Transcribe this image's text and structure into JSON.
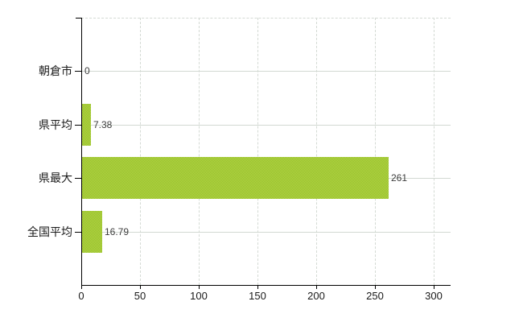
{
  "chart": {
    "background": "#ffffff",
    "axis_color": "#000000",
    "gridline_color": "#d4dad4",
    "bar_color": "#9cc427",
    "bar_color_light": "#b3d44b",
    "value_label_color": "#3d3d3d",
    "category_label_color": "#1a1a1a"
  },
  "chart_data": {
    "type": "bar",
    "orientation": "horizontal",
    "title": "",
    "xlabel": "",
    "ylabel": "",
    "categories": [
      "朝倉市",
      "県平均",
      "県最大",
      "全国平均"
    ],
    "values": [
      0,
      7.38,
      261,
      16.79
    ],
    "value_labels": [
      "0",
      "7.38",
      "261",
      "16.79"
    ],
    "x_ticks": [
      "0",
      "50",
      "100",
      "150",
      "200",
      "250",
      "300"
    ],
    "x_tick_values": [
      0,
      50,
      100,
      150,
      200,
      250,
      300
    ],
    "xlim": [
      0,
      314
    ],
    "grid": true,
    "legend_position": "none"
  }
}
